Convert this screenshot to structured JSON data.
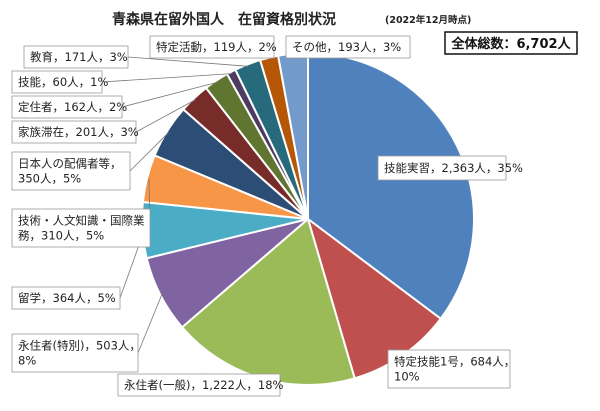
{
  "chart_data": {
    "type": "pie",
    "title": "青森県在留外国人　在留資格別状況",
    "subtitle": "(2022年12月時点)",
    "total_label": "全体総数：6,702人",
    "start_angle_deg": 0,
    "direction": "clockwise",
    "slices": [
      {
        "label": "技能実習",
        "value": 2363,
        "percent": "35%",
        "text": [
          "技能実習，2,363人，35%"
        ],
        "color": "#4f81bd"
      },
      {
        "label": "特定技能1号",
        "value": 684,
        "percent": "10%",
        "text": [
          "特定技能1号，684人，",
          "10%"
        ],
        "color": "#c0504d"
      },
      {
        "label": "永住者（一般）",
        "value": 1222,
        "percent": "18%",
        "text": [
          "永住者(一般)，1,222人，18%"
        ],
        "color": "#9bbb59"
      },
      {
        "label": "永住者（特別）",
        "value": 503,
        "percent": "8%",
        "text": [
          "永住者(特別)，503人，",
          "8%"
        ],
        "color": "#8064a2"
      },
      {
        "label": "留学",
        "value": 364,
        "percent": "5%",
        "text": [
          "留学，364人，5%"
        ],
        "color": "#4bacc6"
      },
      {
        "label": "技術・人文知識・国際業務",
        "value": 310,
        "percent": "5%",
        "text": [
          "技術・人文知識・国際業",
          "務，310人，5%"
        ],
        "color": "#f79646"
      },
      {
        "label": "日本人の配偶者等",
        "value": 350,
        "percent": "5%",
        "text": [
          "日本人の配偶者等，",
          "350人，5%"
        ],
        "color": "#2c4d75"
      },
      {
        "label": "家族滞在",
        "value": 201,
        "percent": "3%",
        "text": [
          "家族滞在，201人，3%"
        ],
        "color": "#772c2a"
      },
      {
        "label": "定住者",
        "value": 162,
        "percent": "2%",
        "text": [
          "定住者，162人，2%"
        ],
        "color": "#5f7530"
      },
      {
        "label": "技能",
        "value": 60,
        "percent": "1%",
        "text": [
          "技能，60人，1%"
        ],
        "color": "#4d3b62"
      },
      {
        "label": "教育",
        "value": 171,
        "percent": "3%",
        "text": [
          "教育，171人，3%"
        ],
        "color": "#276a7c"
      },
      {
        "label": "特定活動",
        "value": 119,
        "percent": "2%",
        "text": [
          "特定活動，119人，2%"
        ],
        "color": "#b65708"
      },
      {
        "label": "その他",
        "value": 193,
        "percent": "3%",
        "text": [
          "その他，193人，3%"
        ],
        "color": "#729aca"
      }
    ]
  }
}
